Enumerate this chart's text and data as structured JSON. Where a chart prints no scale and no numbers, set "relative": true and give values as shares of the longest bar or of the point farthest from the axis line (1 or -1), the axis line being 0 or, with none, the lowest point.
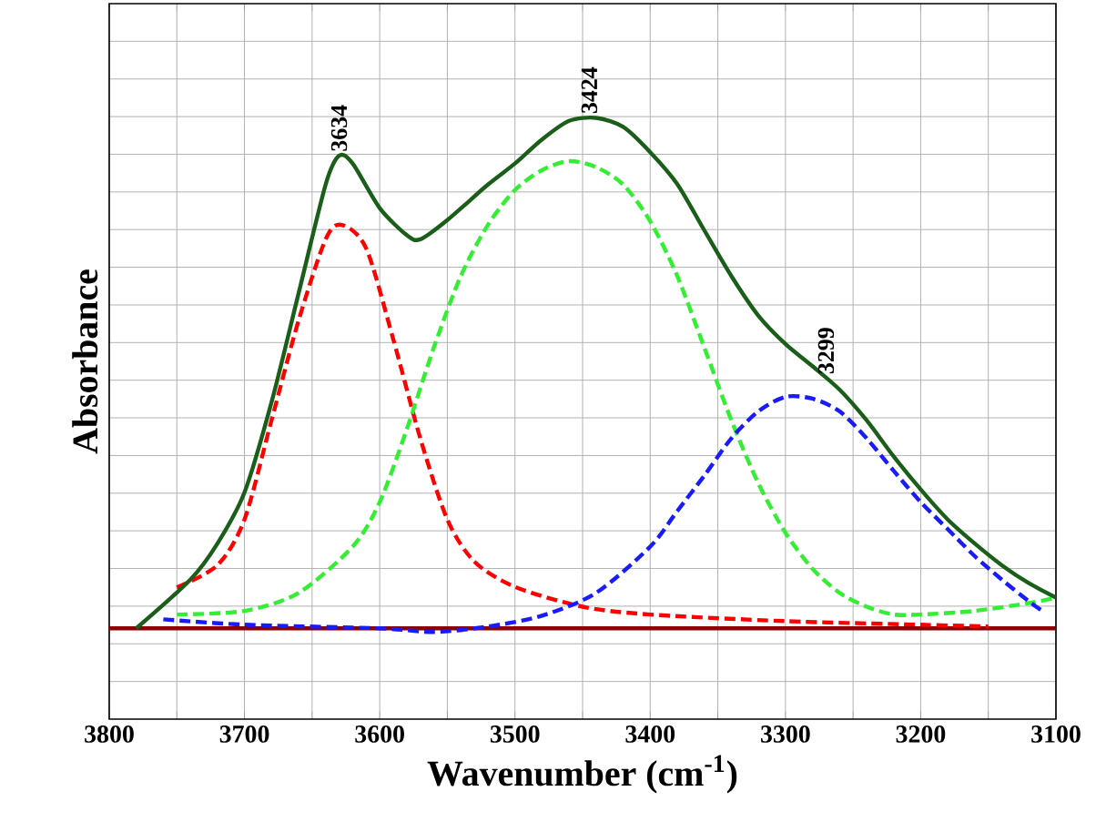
{
  "chart_data": {
    "type": "line",
    "relative": true,
    "xlabel": "Wavenumber (cm$^{-1}$)",
    "ylabel": "Absorbance",
    "xlim": [
      3800,
      3100
    ],
    "xticks": [
      3800,
      {
        "value": 3750,
        "label": null
      },
      3700,
      {
        "value": 3650,
        "label": null
      },
      3600,
      {
        "value": 3550,
        "label": null
      },
      3500,
      {
        "value": 3450,
        "label": null
      },
      3400,
      {
        "value": 3350,
        "label": null
      },
      3300,
      {
        "value": 3250,
        "label": null
      },
      3200,
      {
        "value": 3150,
        "label": null
      },
      3100
    ],
    "grid": true,
    "marker": "none",
    "series": [
      {
        "color": "#8b0000",
        "line_style": "solid",
        "x": [
          3800,
          3100
        ],
        "values": [
          0.151,
          0.151
        ]
      },
      {
        "color": "#ff0000",
        "line_style": "dashed",
        "x": [
          3750,
          3720,
          3700,
          3680,
          3660,
          3640,
          3628,
          3610,
          3590,
          3570,
          3550,
          3530,
          3500,
          3450,
          3400,
          3300,
          3200,
          3150
        ],
        "values": [
          0.219,
          0.256,
          0.332,
          0.497,
          0.663,
          0.798,
          0.822,
          0.783,
          0.632,
          0.467,
          0.332,
          0.262,
          0.22,
          0.187,
          0.174,
          0.163,
          0.157,
          0.154
        ]
      },
      {
        "color": "#33ee33",
        "line_style": "dashed",
        "x": [
          3750,
          3700,
          3660,
          3620,
          3600,
          3580,
          3560,
          3540,
          3520,
          3500,
          3480,
          3460,
          3440,
          3420,
          3400,
          3380,
          3360,
          3340,
          3320,
          3300,
          3280,
          3260,
          3240,
          3220,
          3200,
          3160,
          3120,
          3100
        ],
        "values": [
          0.174,
          0.18,
          0.21,
          0.287,
          0.361,
          0.482,
          0.618,
          0.737,
          0.822,
          0.88,
          0.913,
          0.928,
          0.918,
          0.889,
          0.828,
          0.737,
          0.618,
          0.497,
          0.392,
          0.31,
          0.25,
          0.21,
          0.187,
          0.174,
          0.174,
          0.18,
          0.193,
          0.202
        ]
      },
      {
        "color": "#1a1aff",
        "line_style": "dashed",
        "x": [
          3760,
          3700,
          3600,
          3560,
          3520,
          3480,
          3440,
          3400,
          3380,
          3360,
          3340,
          3320,
          3300,
          3280,
          3260,
          3240,
          3220,
          3200,
          3180,
          3160,
          3140,
          3120,
          3110
        ],
        "values": [
          0.166,
          0.157,
          0.151,
          0.145,
          0.154,
          0.172,
          0.21,
          0.287,
          0.346,
          0.405,
          0.467,
          0.512,
          0.536,
          0.533,
          0.512,
          0.467,
          0.413,
          0.361,
          0.316,
          0.271,
          0.232,
          0.196,
          0.18
        ]
      },
      {
        "color": "#1a5e1a",
        "line_style": "solid",
        "x": [
          3780,
          3740,
          3720,
          3700,
          3680,
          3660,
          3640,
          3630,
          3620,
          3600,
          3580,
          3570,
          3550,
          3520,
          3500,
          3480,
          3460,
          3440,
          3420,
          3400,
          3380,
          3360,
          3340,
          3320,
          3300,
          3280,
          3260,
          3240,
          3220,
          3200,
          3180,
          3160,
          3140,
          3120,
          3100
        ],
        "values": [
          0.151,
          0.232,
          0.292,
          0.377,
          0.527,
          0.708,
          0.889,
          0.937,
          0.924,
          0.85,
          0.805,
          0.798,
          0.83,
          0.889,
          0.924,
          0.964,
          0.995,
          1,
          0.985,
          0.943,
          0.89,
          0.813,
          0.737,
          0.671,
          0.624,
          0.587,
          0.548,
          0.497,
          0.437,
          0.382,
          0.332,
          0.292,
          0.256,
          0.226,
          0.202
        ]
      }
    ],
    "annotations": [
      {
        "text": "3634",
        "x": 3630,
        "y": 0.937
      },
      {
        "text": "3424",
        "x": 3445,
        "y": 1
      },
      {
        "text": "3299",
        "x": 3270,
        "y": 0.567
      }
    ]
  }
}
